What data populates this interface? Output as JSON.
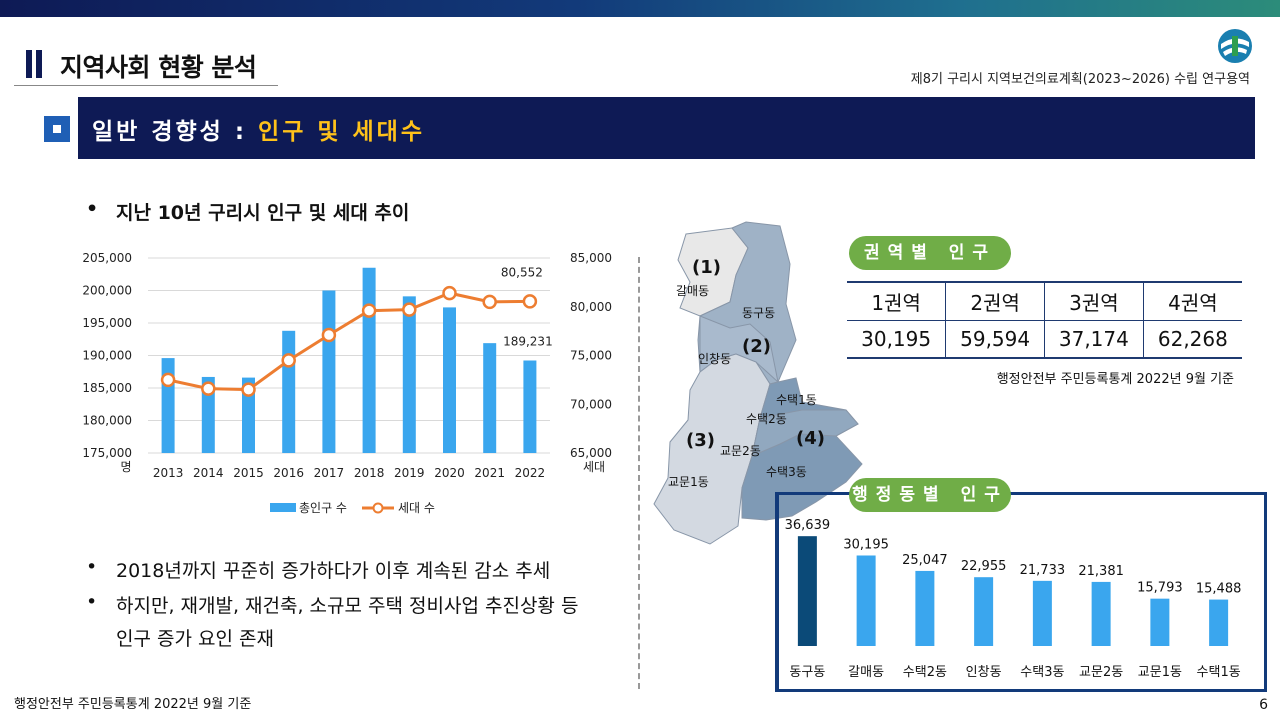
{
  "header": {
    "page_title": "지역사회 현황 분석",
    "subtitle": "제8기 구리시 지역보건의료계획(2023~2026) 수립 연구용역"
  },
  "section": {
    "prefix": "일반 경향성 : ",
    "highlight": "인구 및 세대수"
  },
  "bullets": {
    "dot": "•",
    "chart_heading": "지난 10년 구리시 인구 및 세대 추이",
    "point1": "2018년까지 꾸준히 증가하다가 이후 계속된 감소 추세",
    "point2_line1": "하지만, 재개발, 재건축, 소규모 주택 정비사업 추진상황 등",
    "point2_line2": "인구 증가 요인 존재"
  },
  "footer": {
    "source": "행정안전부 주민등록통계 2022년 9월 기준",
    "page_number": "6"
  },
  "map": {
    "labels": [
      "갈매동",
      "동구동",
      "인창동",
      "수택1동",
      "수택2동",
      "교문2동",
      "수택3동",
      "교문1동"
    ],
    "region_numbers": [
      "(1)",
      "(2)",
      "(3)",
      "(4)"
    ],
    "colors": {
      "r1": "#e8e8e8",
      "r2": "#9fb2c6",
      "r3": "#d3d9e1",
      "r4": "#7f9ab5"
    }
  },
  "region_table": {
    "title": "권역별 인구",
    "headers": [
      "1권역",
      "2권역",
      "3권역",
      "4권역"
    ],
    "values": [
      "30,195",
      "59,594",
      "37,174",
      "62,268"
    ],
    "source": "행정안전부 주민등록통계 2022년 9월 기준"
  },
  "dong_section": {
    "title": "행정동별 인구"
  },
  "colors": {
    "navy": "#0e1a55",
    "bar_blue": "#3aa6ee",
    "line_orange": "#ed7d31",
    "highlight_bar": "#0b4a78",
    "pill_green": "#70ad47",
    "title_yellow": "#ffc21a"
  },
  "chart_data": [
    {
      "type": "bar+line",
      "title": "",
      "categories": [
        "2013",
        "2014",
        "2015",
        "2016",
        "2017",
        "2018",
        "2019",
        "2020",
        "2021",
        "2022"
      ],
      "series": [
        {
          "name": "총인구 수",
          "type": "bar",
          "axis": "left",
          "values": [
            189600,
            186700,
            186600,
            193800,
            200000,
            203500,
            199100,
            197400,
            191900,
            189231
          ]
        },
        {
          "name": "세대 수",
          "type": "line",
          "axis": "right",
          "values": [
            72500,
            71600,
            71500,
            74500,
            77100,
            79600,
            79700,
            81400,
            80500,
            80552
          ]
        }
      ],
      "left_axis": {
        "ylim": [
          175000,
          205000
        ],
        "ticks": [
          "175,000",
          "180,000",
          "185,000",
          "190,000",
          "195,000",
          "200,000",
          "205,000"
        ],
        "unit": "명"
      },
      "right_axis": {
        "ylim": [
          65000,
          85000
        ],
        "ticks": [
          "65,000",
          "70,000",
          "75,000",
          "80,000",
          "85,000"
        ],
        "unit": "세대"
      },
      "annotations": {
        "line_last": "80,552",
        "bar_last": "189,231"
      },
      "grid": true,
      "legend": "bottom"
    },
    {
      "type": "bar",
      "title": "행정동별 인구",
      "categories": [
        "동구동",
        "갈매동",
        "수택2동",
        "인창동",
        "수택3동",
        "교문2동",
        "교문1동",
        "수택1동"
      ],
      "values": [
        36639,
        30195,
        25047,
        22955,
        21733,
        21381,
        15793,
        15488
      ],
      "labels": [
        "36,639",
        "30,195",
        "25,047",
        "22,955",
        "21,733",
        "21,381",
        "15,793",
        "15,488"
      ],
      "ylim": [
        0,
        40000
      ],
      "grid": false,
      "legend": "none"
    }
  ]
}
